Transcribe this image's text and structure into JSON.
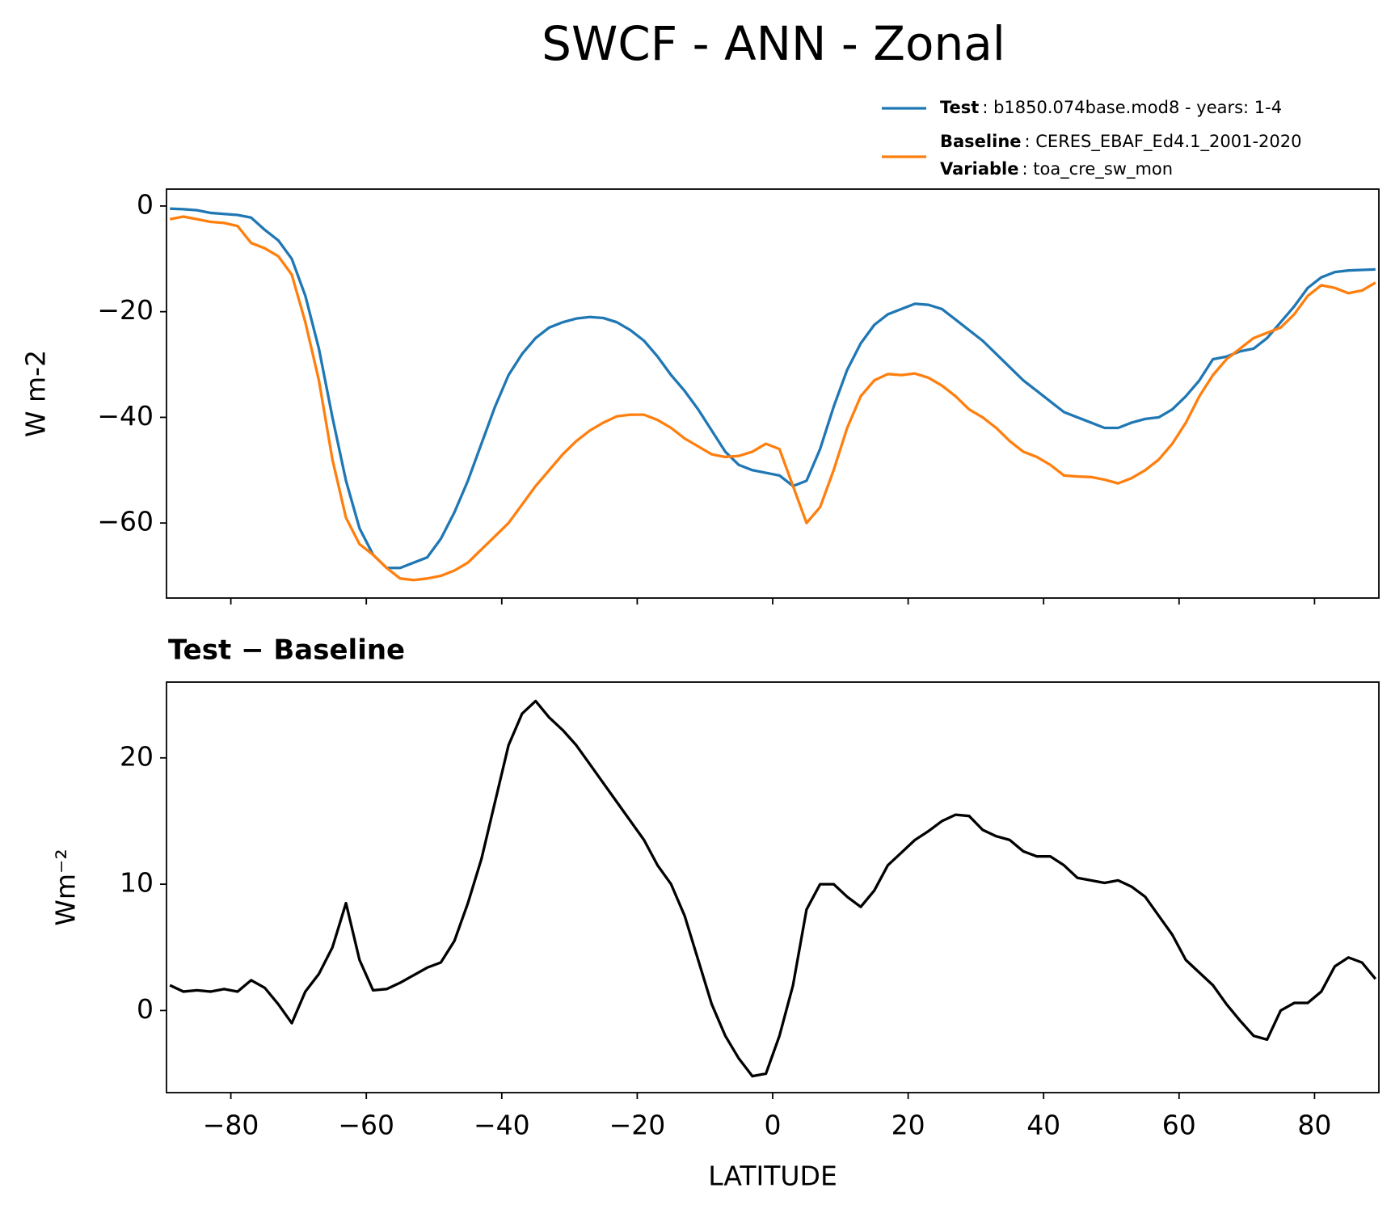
{
  "title": "SWCF - ANN - Zonal",
  "chart_data": [
    {
      "type": "line",
      "x": [
        -89,
        -87,
        -85,
        -83,
        -81,
        -79,
        -77,
        -75,
        -73,
        -71,
        -69,
        -67,
        -65,
        -63,
        -61,
        -59,
        -57,
        -55,
        -53,
        -51,
        -49,
        -47,
        -45,
        -43,
        -41,
        -39,
        -37,
        -35,
        -33,
        -31,
        -29,
        -27,
        -25,
        -23,
        -21,
        -19,
        -17,
        -15,
        -13,
        -11,
        -9,
        -7,
        -5,
        -3,
        -1,
        1,
        3,
        5,
        7,
        9,
        11,
        13,
        15,
        17,
        19,
        21,
        23,
        25,
        27,
        29,
        31,
        33,
        35,
        37,
        39,
        41,
        43,
        45,
        47,
        49,
        51,
        53,
        55,
        57,
        59,
        61,
        63,
        65,
        67,
        69,
        71,
        73,
        75,
        77,
        79,
        81,
        83,
        85,
        87,
        89
      ],
      "series": [
        {
          "name": "Test",
          "label": ": b1850.074base.mod8 - years: 1-4",
          "color": "#1f77b4",
          "values": [
            -0.5,
            -0.6,
            -0.8,
            -1.3,
            -1.5,
            -1.7,
            -2.2,
            -4.5,
            -6.5,
            -10,
            -17,
            -27,
            -40,
            -52,
            -61,
            -66,
            -68.5,
            -68.5,
            -67.5,
            -66.5,
            -63,
            -58,
            -52,
            -45,
            -38,
            -32,
            -28,
            -25,
            -23,
            -22,
            -21.3,
            -21,
            -21.2,
            -22,
            -23.5,
            -25.5,
            -28.5,
            -32,
            -35,
            -38.5,
            -42.5,
            -46.5,
            -49,
            -50,
            -50.5,
            -51,
            -53,
            -52,
            -46,
            -38,
            -31,
            -26,
            -22.5,
            -20.5,
            -19.5,
            -18.5,
            -18.7,
            -19.5,
            -21.5,
            -23.5,
            -25.5,
            -28,
            -30.5,
            -33,
            -35,
            -37,
            -39,
            -40,
            -41,
            -42,
            -42,
            -41,
            -40.3,
            -40,
            -38.5,
            -36,
            -33,
            -29,
            -28.5,
            -27.5,
            -27,
            -25,
            -22,
            -19,
            -15.5,
            -13.5,
            -12.5,
            -12.2,
            -12.1,
            -12
          ]
        },
        {
          "name": "Baseline",
          "label": ": CERES_EBAF_Ed4.1_2001-2020",
          "color": "#ff7f0e",
          "values": [
            -2.5,
            -2,
            -2.5,
            -3,
            -3.2,
            -3.8,
            -7,
            -8,
            -9.5,
            -13,
            -22,
            -33,
            -48,
            -59,
            -64,
            -66,
            -68.5,
            -70.5,
            -70.8,
            -70.5,
            -70,
            -69,
            -67.5,
            -65,
            -62.5,
            -60,
            -56.5,
            -53,
            -50,
            -47,
            -44.5,
            -42.5,
            -41,
            -39.8,
            -39.5,
            -39.5,
            -40.5,
            -42,
            -44,
            -45.5,
            -47,
            -47.5,
            -47.3,
            -46.5,
            -45,
            -46,
            -53,
            -60,
            -57,
            -50,
            -42,
            -36,
            -33,
            -31.8,
            -32,
            -31.7,
            -32.5,
            -34,
            -36,
            -38.5,
            -40,
            -42,
            -44.5,
            -46.5,
            -47.5,
            -49,
            -51,
            -51.2,
            -51.3,
            -51.8,
            -52.5,
            -51.5,
            -50,
            -48,
            -45,
            -41,
            -36,
            -32,
            -29,
            -27,
            -25,
            -24,
            -23,
            -20.5,
            -17,
            -15,
            -15.5,
            -16.5,
            -16,
            -14.5
          ]
        }
      ],
      "legend_extra": {
        "name": "Variable",
        "label": ": toa_cre_sw_mon"
      },
      "ylabel": "W m-2",
      "xlim": [
        -89.5,
        89.5
      ],
      "ylim": [
        -74.2,
        3.2
      ],
      "xticks": [
        -80,
        -60,
        -40,
        -20,
        0,
        20,
        40,
        60,
        80
      ],
      "yticks": [
        0,
        {
          "value": -20,
          "label": "−20"
        },
        {
          "value": -40,
          "label": "−40"
        },
        {
          "value": -60,
          "label": "−60"
        }
      ]
    },
    {
      "type": "line",
      "title": "Test − Baseline",
      "x": [
        -89,
        -87,
        -85,
        -83,
        -81,
        -79,
        -77,
        -75,
        -73,
        -71,
        -69,
        -67,
        -65,
        -63,
        -61,
        -59,
        -57,
        -55,
        -53,
        -51,
        -49,
        -47,
        -45,
        -43,
        -41,
        -39,
        -37,
        -35,
        -33,
        -31,
        -29,
        -27,
        -25,
        -23,
        -21,
        -19,
        -17,
        -15,
        -13,
        -11,
        -9,
        -7,
        -5,
        -3,
        -1,
        1,
        3,
        5,
        7,
        9,
        11,
        13,
        15,
        17,
        19,
        21,
        23,
        25,
        27,
        29,
        31,
        33,
        35,
        37,
        39,
        41,
        43,
        45,
        47,
        49,
        51,
        53,
        55,
        57,
        59,
        61,
        63,
        65,
        67,
        69,
        71,
        73,
        75,
        77,
        79,
        81,
        83,
        85,
        87,
        89
      ],
      "color": "#000000",
      "values": [
        2,
        1.5,
        1.6,
        1.5,
        1.7,
        1.5,
        2.4,
        1.8,
        0.5,
        -1,
        1.5,
        2.9,
        5,
        8.5,
        4,
        1.6,
        1.7,
        2.2,
        2.8,
        3.4,
        3.8,
        5.5,
        8.5,
        12,
        16.5,
        21,
        23.5,
        24.5,
        23.2,
        22.2,
        21,
        19.5,
        18,
        16.5,
        15,
        13.5,
        11.5,
        10,
        7.5,
        4,
        0.5,
        -2,
        -3.8,
        -5.2,
        -5,
        -2,
        2,
        8,
        10,
        10,
        9,
        8.2,
        9.5,
        11.5,
        12.5,
        13.5,
        14.2,
        15,
        15.5,
        15.4,
        14.3,
        13.8,
        13.5,
        12.6,
        12.2,
        12.2,
        11.5,
        10.5,
        10.3,
        10.1,
        10.3,
        9.8,
        9,
        7.5,
        6,
        4,
        3,
        2,
        0.5,
        -0.8,
        -2,
        -2.3,
        0,
        0.6,
        0.6,
        1.5,
        3.5,
        4.2,
        3.8,
        2.5
      ],
      "xlabel": "LATITUDE",
      "ylabel": "Wm⁻²",
      "xlim": [
        -89.5,
        89.5
      ],
      "ylim": [
        -6.5,
        26
      ],
      "xticks": [
        {
          "value": -80,
          "label": "−80"
        },
        {
          "value": -60,
          "label": "−60"
        },
        {
          "value": -40,
          "label": "−40"
        },
        {
          "value": -20,
          "label": "−20"
        },
        0,
        20,
        40,
        60,
        80
      ],
      "yticks": [
        0,
        10,
        20
      ]
    }
  ]
}
